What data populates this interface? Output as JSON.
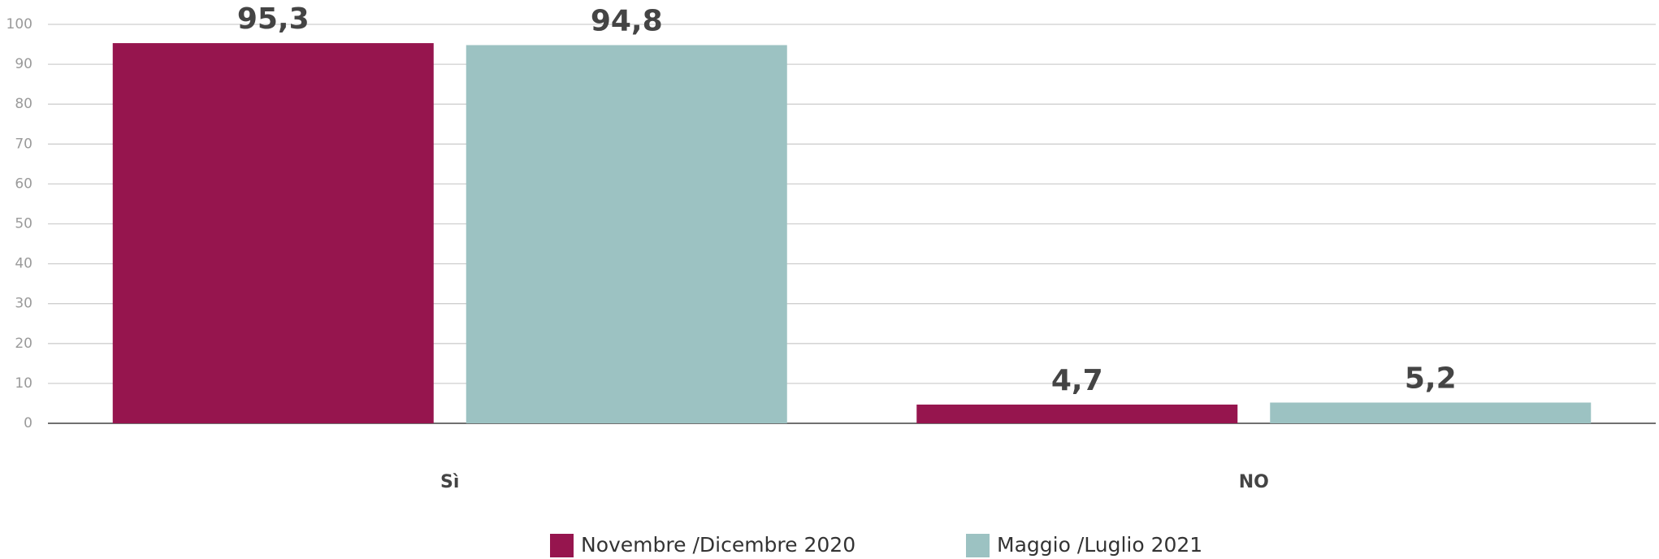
{
  "chart_data": {
    "type": "bar",
    "categories": [
      "Sì",
      "NO"
    ],
    "series": [
      {
        "name": "Novembre /Dicembre 2020",
        "color": "#96154e",
        "values": [
          95.3,
          4.7
        ],
        "value_labels": [
          "95,3",
          "4,7"
        ]
      },
      {
        "name": "Maggio /Luglio 2021",
        "color": "#9cc2c2",
        "values": [
          94.8,
          5.2
        ],
        "value_labels": [
          "94,8",
          "5,2"
        ]
      }
    ],
    "ylim": [
      0,
      100
    ],
    "yticks": [
      0,
      10,
      20,
      30,
      40,
      50,
      60,
      70,
      80,
      90,
      100
    ],
    "grid": true
  }
}
